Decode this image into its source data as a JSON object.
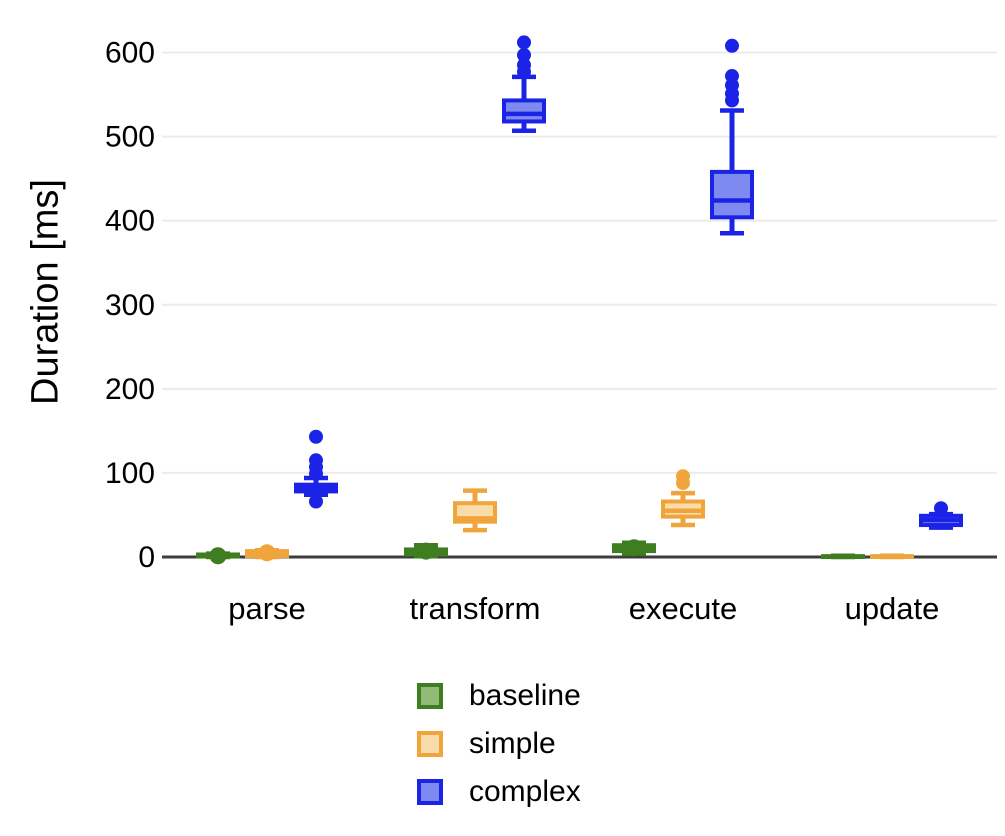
{
  "colors": {
    "axis_line": "#3d3d3d",
    "gridline": "#ebebeb",
    "text": "#000000",
    "baseline_stroke": "#3e7d20",
    "baseline_fill": "#92ba78",
    "simple_stroke": "#f0a53c",
    "simple_fill": "#fadcab",
    "complex_stroke": "#1b24e6",
    "complex_fill": "#7f8af0"
  },
  "chart_data": {
    "type": "boxplot",
    "title": "",
    "xlabel": "",
    "ylabel": "Duration [ms]",
    "ylim": [
      0,
      620
    ],
    "yticks": [
      0,
      100,
      200,
      300,
      400,
      500,
      600
    ],
    "grid": "horizontal-light",
    "legend_position": "bottom-center",
    "categories": [
      "parse",
      "transform",
      "execute",
      "update"
    ],
    "series": [
      {
        "name": "baseline",
        "stroke": "#3e7d20",
        "fill": "#92ba78",
        "boxes": [
          {
            "low": 0,
            "q1": 0.5,
            "median": 1.5,
            "q3": 3,
            "high": 4,
            "outliers": [],
            "median_dot": true
          },
          {
            "low": 1,
            "q1": 3,
            "median": 7,
            "q3": 9,
            "high": 14,
            "outliers": [],
            "median_dot": true
          },
          {
            "low": 4,
            "q1": 7,
            "median": 11,
            "q3": 14,
            "high": 17,
            "outliers": [],
            "median_dot": true
          },
          {
            "low": 0,
            "q1": 0,
            "median": 0.5,
            "q3": 1,
            "high": 1.5,
            "outliers": [],
            "median_dot": false
          }
        ]
      },
      {
        "name": "simple",
        "stroke": "#f0a53c",
        "fill": "#fadcab",
        "boxes": [
          {
            "low": 0,
            "q1": 1,
            "median": 5,
            "q3": 7,
            "high": 8,
            "outliers": [],
            "median_dot": true
          },
          {
            "low": 32,
            "q1": 42,
            "median": 46,
            "q3": 64,
            "high": 79,
            "outliers": [],
            "median_dot": false
          },
          {
            "low": 38,
            "q1": 48,
            "median": 55,
            "q3": 66,
            "high": 76,
            "outliers": [
              88,
              96
            ],
            "median_dot": false
          },
          {
            "low": 0,
            "q1": 0,
            "median": 0.5,
            "q3": 1,
            "high": 1.5,
            "outliers": [],
            "median_dot": false
          }
        ]
      },
      {
        "name": "complex",
        "stroke": "#1b24e6",
        "fill": "#7f8af0",
        "boxes": [
          {
            "low": 74,
            "q1": 78,
            "median": 82,
            "q3": 86,
            "high": 94,
            "outliers": [
              66,
              99,
              107,
              115,
              143
            ],
            "median_dot": false
          },
          {
            "low": 507,
            "q1": 518,
            "median": 527,
            "q3": 543,
            "high": 571,
            "outliers": [
              577,
              585,
              597,
              612
            ],
            "median_dot": false
          },
          {
            "low": 385,
            "q1": 404,
            "median": 424,
            "q3": 458,
            "high": 531,
            "outliers": [
              543,
              551,
              561,
              572,
              608
            ],
            "median_dot": false
          },
          {
            "low": 35,
            "q1": 38,
            "median": 44,
            "q3": 49,
            "high": 51,
            "outliers": [
              58
            ],
            "median_dot": false
          }
        ]
      }
    ]
  }
}
